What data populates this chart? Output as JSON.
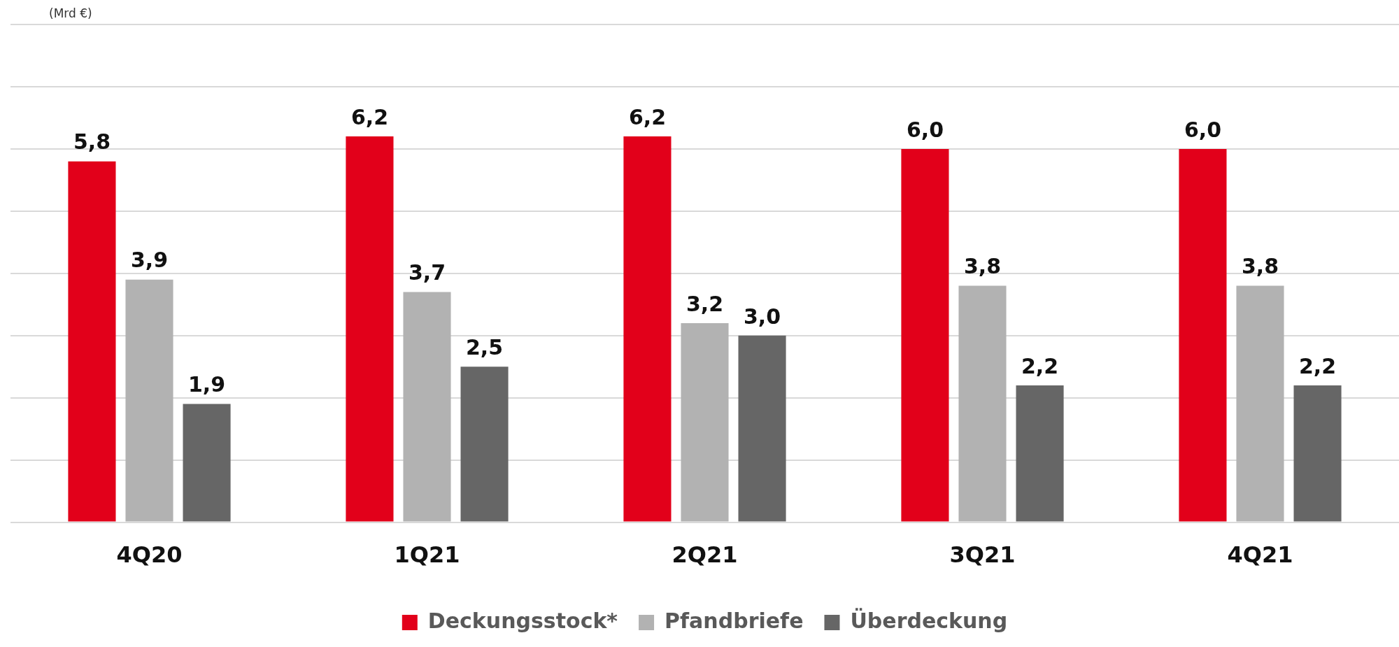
{
  "chart_data": {
    "type": "bar",
    "ylabel": "(Mrd €)",
    "categories": [
      "4Q20",
      "1Q21",
      "2Q21",
      "3Q21",
      "4Q21"
    ],
    "series": [
      {
        "name": "Deckungsstock*",
        "color": "#e2001a",
        "values": [
          5.8,
          6.2,
          6.2,
          6.0,
          6.0
        ],
        "value_labels": [
          "5,8",
          "6,2",
          "6,2",
          "6,0",
          "6,0"
        ]
      },
      {
        "name": "Pfandbriefe",
        "color": "#b2b2b2",
        "values": [
          3.9,
          3.7,
          3.2,
          3.8,
          3.8
        ],
        "value_labels": [
          "3,9",
          "3,7",
          "3,2",
          "3,8",
          "3,8"
        ]
      },
      {
        "name": "Überdeckung",
        "color": "#666666",
        "values": [
          1.9,
          2.5,
          3.0,
          2.2,
          2.2
        ],
        "value_labels": [
          "1,9",
          "2,5",
          "3,0",
          "2,2",
          "2,2"
        ]
      }
    ],
    "ylim": [
      0,
      8
    ],
    "yticks": [
      {
        "value": 0,
        "label": null
      },
      {
        "value": 1,
        "label": null
      },
      {
        "value": 2,
        "label": null
      },
      {
        "value": 3,
        "label": null
      },
      {
        "value": 4,
        "label": null
      },
      {
        "value": 5,
        "label": null
      },
      {
        "value": 6,
        "label": null
      },
      {
        "value": 7,
        "label": null
      },
      {
        "value": 8,
        "label": null
      }
    ],
    "tick_labels": "x",
    "grid": "y",
    "legend": "bottom"
  }
}
